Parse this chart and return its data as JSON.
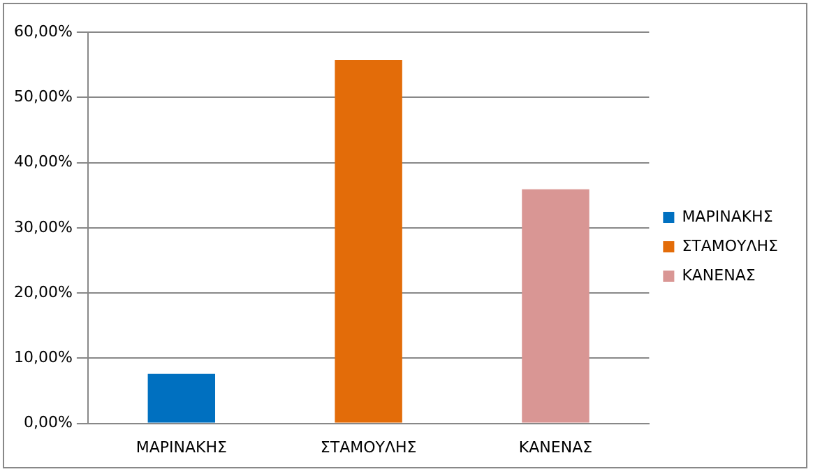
{
  "chart_data": {
    "type": "bar",
    "categories": [
      "ΜΑΡΙΝΑΚΗΣ",
      "ΣΤΑΜΟΥΛΗΣ",
      "ΚΑΝΕΝΑΣ"
    ],
    "series": [
      {
        "name": "ΜΑΡΙΝΑΚΗΣ",
        "color": "#0070c0",
        "values": [
          7.6,
          null,
          null
        ]
      },
      {
        "name": "ΣΤΑΜΟΥΛΗΣ",
        "color": "#e36c09",
        "values": [
          null,
          55.7,
          null
        ]
      },
      {
        "name": "ΚΑΝΕΝΑΣ",
        "color": "#d99694",
        "values": [
          null,
          null,
          35.9
        ]
      }
    ],
    "ylim": [
      0,
      60
    ],
    "yticks": [
      {
        "value": 0,
        "label": "0,00%"
      },
      {
        "value": 10,
        "label": "10,00%"
      },
      {
        "value": 20,
        "label": "20,00%"
      },
      {
        "value": 30,
        "label": "30,00%"
      },
      {
        "value": 40,
        "label": "40,00%"
      },
      {
        "value": 50,
        "label": "50,00%"
      },
      {
        "value": 60,
        "label": "60,00%"
      }
    ],
    "grid": "y",
    "legend": "right"
  }
}
